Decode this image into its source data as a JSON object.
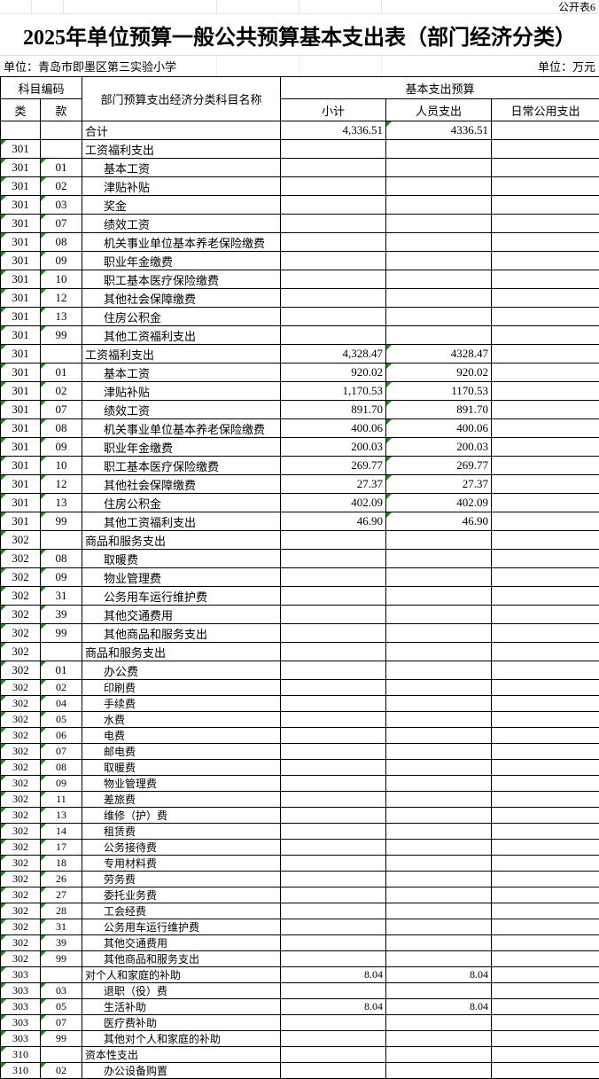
{
  "meta": {
    "sheet_label": "公开表6",
    "title": "2025年单位预算一般公共预算基本支出表（部门经济分类）",
    "unit_left": "单位：青岛市即墨区第三实验小学",
    "unit_right": "单位：万元"
  },
  "colors": {
    "error_indicator_green": "#1b8a1b",
    "border_black": "#000000",
    "faint_gridline": "#e4e4e4"
  },
  "header": {
    "subject_code": "科目编码",
    "class": "类",
    "section": "款",
    "subject_name": "部门预算支出经济分类科目名称",
    "basic_budget": "基本支出预算",
    "subtotal": "小计",
    "personnel": "人员支出",
    "daily": "日常公用支出"
  },
  "table": {
    "compact_from_index": 30,
    "columns": [
      "类",
      "款",
      "部门预算支出经济分类科目名称",
      "小计",
      "人员支出",
      "日常公用支出"
    ],
    "rows": [
      {
        "c": "",
        "s": "",
        "n": "合计",
        "st": "4,336.51",
        "p": "4336.51",
        "d": "",
        "ptri": true
      },
      {
        "c": "301",
        "s": "",
        "n": "工资福利支出",
        "st": "",
        "p": "",
        "d": ""
      },
      {
        "c": "301",
        "s": "01",
        "n": "基本工资",
        "st": "",
        "p": "",
        "d": ""
      },
      {
        "c": "301",
        "s": "02",
        "n": "津贴补贴",
        "st": "",
        "p": "",
        "d": ""
      },
      {
        "c": "301",
        "s": "03",
        "n": "奖金",
        "st": "",
        "p": "",
        "d": ""
      },
      {
        "c": "301",
        "s": "07",
        "n": "绩效工资",
        "st": "",
        "p": "",
        "d": ""
      },
      {
        "c": "301",
        "s": "08",
        "n": "机关事业单位基本养老保险缴费",
        "st": "",
        "p": "",
        "d": ""
      },
      {
        "c": "301",
        "s": "09",
        "n": "职业年金缴费",
        "st": "",
        "p": "",
        "d": ""
      },
      {
        "c": "301",
        "s": "10",
        "n": "职工基本医疗保险缴费",
        "st": "",
        "p": "",
        "d": ""
      },
      {
        "c": "301",
        "s": "12",
        "n": "其他社会保障缴费",
        "st": "",
        "p": "",
        "d": ""
      },
      {
        "c": "301",
        "s": "13",
        "n": "住房公积金",
        "st": "",
        "p": "",
        "d": ""
      },
      {
        "c": "301",
        "s": "99",
        "n": "其他工资福利支出",
        "st": "",
        "p": "",
        "d": ""
      },
      {
        "c": "301",
        "s": "",
        "n": "工资福利支出",
        "st": "4,328.47",
        "p": "4328.47",
        "d": "",
        "ptri": true
      },
      {
        "c": "301",
        "s": "01",
        "n": "基本工资",
        "st": "920.02",
        "p": "920.02",
        "d": "",
        "ptri": true
      },
      {
        "c": "301",
        "s": "02",
        "n": "津贴补贴",
        "st": "1,170.53",
        "p": "1170.53",
        "d": "",
        "ptri": true
      },
      {
        "c": "301",
        "s": "07",
        "n": "绩效工资",
        "st": "891.70",
        "p": "891.70",
        "d": "",
        "ptri": true
      },
      {
        "c": "301",
        "s": "08",
        "n": "机关事业单位基本养老保险缴费",
        "st": "400.06",
        "p": "400.06",
        "d": "",
        "ptri": true
      },
      {
        "c": "301",
        "s": "09",
        "n": "职业年金缴费",
        "st": "200.03",
        "p": "200.03",
        "d": "",
        "ptri": true
      },
      {
        "c": "301",
        "s": "10",
        "n": "职工基本医疗保险缴费",
        "st": "269.77",
        "p": "269.77",
        "d": "",
        "ptri": true
      },
      {
        "c": "301",
        "s": "12",
        "n": "其他社会保障缴费",
        "st": "27.37",
        "p": "27.37",
        "d": "",
        "ptri": true
      },
      {
        "c": "301",
        "s": "13",
        "n": "住房公积金",
        "st": "402.09",
        "p": "402.09",
        "d": "",
        "ptri": true
      },
      {
        "c": "301",
        "s": "99",
        "n": "其他工资福利支出",
        "st": "46.90",
        "p": "46.90",
        "d": "",
        "ptri": true
      },
      {
        "c": "302",
        "s": "",
        "n": "商品和服务支出",
        "st": "",
        "p": "",
        "d": ""
      },
      {
        "c": "302",
        "s": "08",
        "n": "取暖费",
        "st": "",
        "p": "",
        "d": ""
      },
      {
        "c": "302",
        "s": "09",
        "n": "物业管理费",
        "st": "",
        "p": "",
        "d": ""
      },
      {
        "c": "302",
        "s": "31",
        "n": "公务用车运行维护费",
        "st": "",
        "p": "",
        "d": ""
      },
      {
        "c": "302",
        "s": "39",
        "n": "其他交通费用",
        "st": "",
        "p": "",
        "d": ""
      },
      {
        "c": "302",
        "s": "99",
        "n": "其他商品和服务支出",
        "st": "",
        "p": "",
        "d": ""
      },
      {
        "c": "302",
        "s": "",
        "n": "商品和服务支出",
        "st": "",
        "p": "",
        "d": ""
      },
      {
        "c": "302",
        "s": "01",
        "n": "办公费",
        "st": "",
        "p": "",
        "d": ""
      },
      {
        "c": "302",
        "s": "02",
        "n": "印刷费",
        "st": "",
        "p": "",
        "d": ""
      },
      {
        "c": "302",
        "s": "04",
        "n": "手续费",
        "st": "",
        "p": "",
        "d": ""
      },
      {
        "c": "302",
        "s": "05",
        "n": "水费",
        "st": "",
        "p": "",
        "d": ""
      },
      {
        "c": "302",
        "s": "06",
        "n": "电费",
        "st": "",
        "p": "",
        "d": ""
      },
      {
        "c": "302",
        "s": "07",
        "n": "邮电费",
        "st": "",
        "p": "",
        "d": ""
      },
      {
        "c": "302",
        "s": "08",
        "n": "取暖费",
        "st": "",
        "p": "",
        "d": ""
      },
      {
        "c": "302",
        "s": "09",
        "n": "物业管理费",
        "st": "",
        "p": "",
        "d": ""
      },
      {
        "c": "302",
        "s": "11",
        "n": "差旅费",
        "st": "",
        "p": "",
        "d": ""
      },
      {
        "c": "302",
        "s": "13",
        "n": "维修（护）费",
        "st": "",
        "p": "",
        "d": ""
      },
      {
        "c": "302",
        "s": "14",
        "n": "租赁费",
        "st": "",
        "p": "",
        "d": ""
      },
      {
        "c": "302",
        "s": "17",
        "n": "公务接待费",
        "st": "",
        "p": "",
        "d": ""
      },
      {
        "c": "302",
        "s": "18",
        "n": "专用材料费",
        "st": "",
        "p": "",
        "d": ""
      },
      {
        "c": "302",
        "s": "26",
        "n": "劳务费",
        "st": "",
        "p": "",
        "d": ""
      },
      {
        "c": "302",
        "s": "27",
        "n": "委托业务费",
        "st": "",
        "p": "",
        "d": ""
      },
      {
        "c": "302",
        "s": "28",
        "n": "工会经费",
        "st": "",
        "p": "",
        "d": ""
      },
      {
        "c": "302",
        "s": "31",
        "n": "公务用车运行维护费",
        "st": "",
        "p": "",
        "d": ""
      },
      {
        "c": "302",
        "s": "39",
        "n": "其他交通费用",
        "st": "",
        "p": "",
        "d": ""
      },
      {
        "c": "302",
        "s": "99",
        "n": "其他商品和服务支出",
        "st": "",
        "p": "",
        "d": ""
      },
      {
        "c": "303",
        "s": "",
        "n": "对个人和家庭的补助",
        "st": "8.04",
        "p": "8.04",
        "d": ""
      },
      {
        "c": "303",
        "s": "03",
        "n": "退职（役）费",
        "st": "",
        "p": "",
        "d": ""
      },
      {
        "c": "303",
        "s": "05",
        "n": "生活补助",
        "st": "8.04",
        "p": "8.04",
        "d": ""
      },
      {
        "c": "303",
        "s": "07",
        "n": "医疗费补助",
        "st": "",
        "p": "",
        "d": ""
      },
      {
        "c": "303",
        "s": "99",
        "n": "其他对个人和家庭的补助",
        "st": "",
        "p": "",
        "d": ""
      },
      {
        "c": "310",
        "s": "",
        "n": "资本性支出",
        "st": "",
        "p": "",
        "d": ""
      },
      {
        "c": "310",
        "s": "02",
        "n": "办公设备购置",
        "st": "",
        "p": "",
        "d": ""
      }
    ]
  }
}
